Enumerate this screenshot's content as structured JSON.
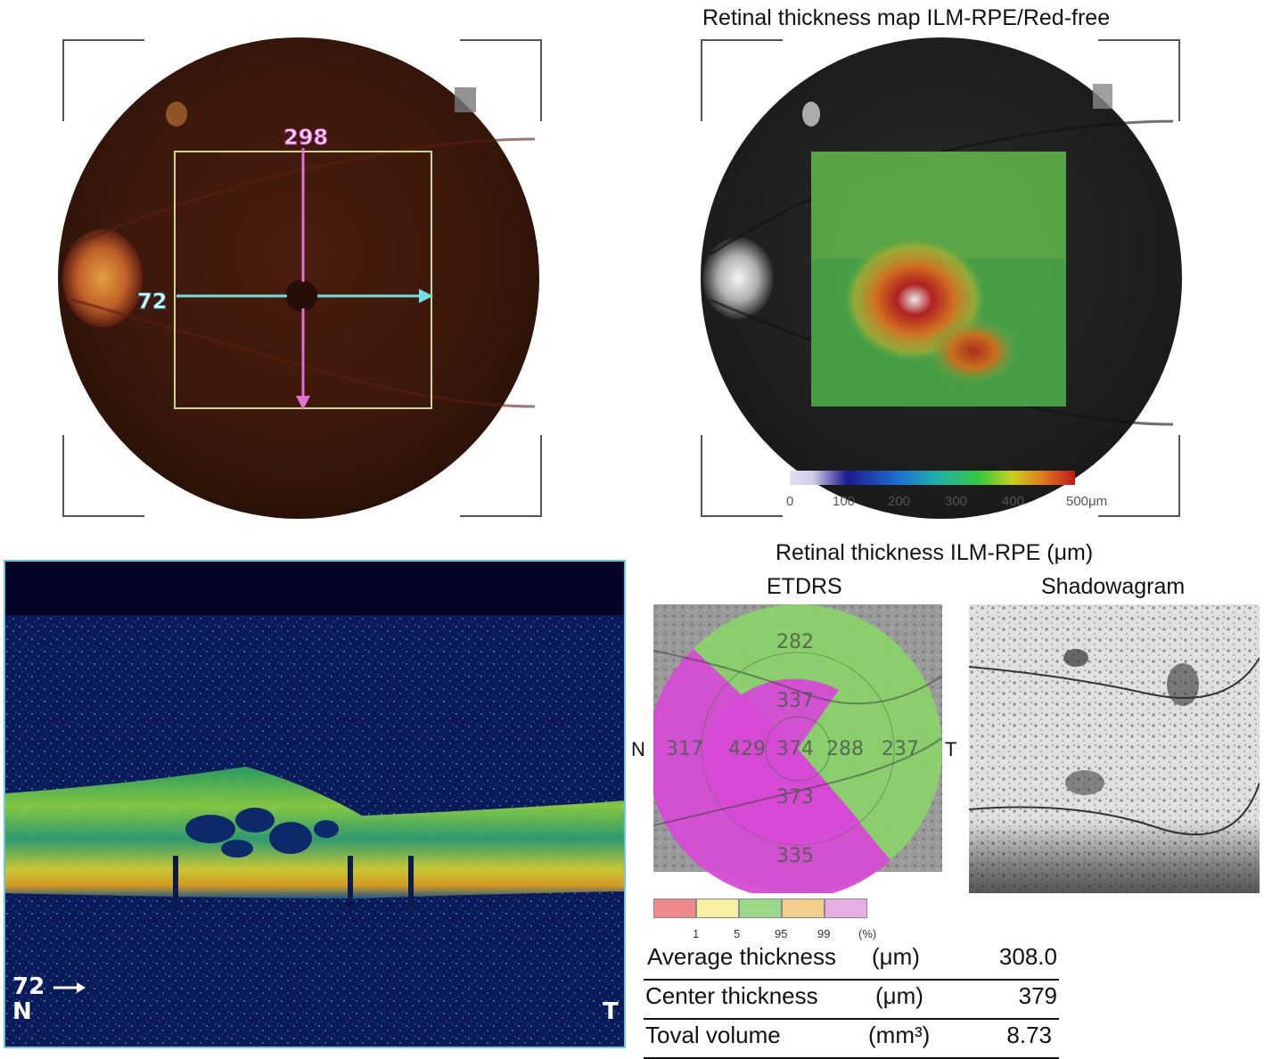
{
  "fundus_color": {
    "scan_number_vertical": "298",
    "scan_number_horizontal": "72"
  },
  "thickness_map": {
    "title": "Retinal thickness map ILM-RPE/Red-free",
    "scale_ticks": [
      "0",
      "100",
      "200",
      "300",
      "400",
      "500μm"
    ],
    "scale_colors": [
      "#e4e0ef",
      "#1a1a8c",
      "#1f6fd0",
      "#1fb0a8",
      "#35c840",
      "#c8d020",
      "#e08020",
      "#c01818"
    ]
  },
  "oct_bscan": {
    "scan_marker": "72",
    "left_label": "N",
    "right_label": "T"
  },
  "etdrs": {
    "section_title": "Retinal thickness ILM-RPE (μm)",
    "etdrs_title": "ETDRS",
    "shadowgram_title": "Shadowagram",
    "left_side_label": "N",
    "right_side_label": "T",
    "values": {
      "outer_superior": "282",
      "inner_superior": "337",
      "outer_nasal": "317",
      "inner_nasal": "429",
      "center": "374",
      "inner_temporal": "288",
      "outer_temporal": "237",
      "inner_inferior": "373",
      "outer_inferior": "335"
    },
    "legend_colors": [
      "#f08a8a",
      "#f6f0a0",
      "#9ad88a",
      "#f2d08a",
      "#e6b0e6"
    ],
    "legend_ticks": [
      "1",
      "5",
      "95",
      "99",
      "(%)"
    ]
  },
  "stats": [
    {
      "label": "Average thickness",
      "unit": "(μm)",
      "value": "308.0"
    },
    {
      "label": "Center thickness",
      "unit": "(μm)",
      "value": "379"
    },
    {
      "label": "Toval volume",
      "unit": "(mm³)",
      "value": "8.73"
    }
  ]
}
